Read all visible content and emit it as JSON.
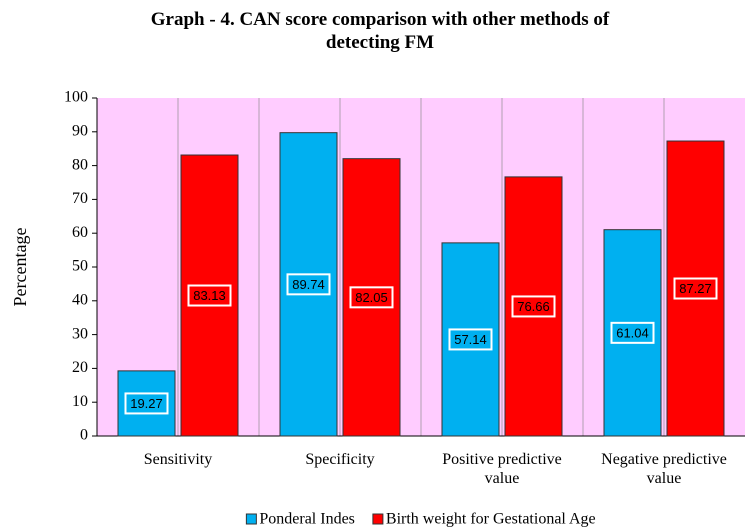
{
  "chart_data": {
    "type": "bar",
    "title": "Graph - 4. CAN score comparison with other methods of detecting FM",
    "y_label": "Percentage",
    "categories": [
      "Sensitivity",
      "Specificity",
      "Positive predictive value",
      "Negative predictive value"
    ],
    "series": [
      {
        "name": "Ponderal Indes",
        "color": "#00b0f0",
        "values": [
          19.27,
          89.74,
          57.14,
          61.04
        ]
      },
      {
        "name": "Birth weight for Gestational Age",
        "color": "#ff0000",
        "values": [
          83.13,
          82.05,
          76.66,
          87.27
        ]
      }
    ],
    "ylim": [
      0,
      100
    ],
    "yticks": [
      0,
      10,
      20,
      30,
      40,
      50,
      60,
      70,
      80,
      90,
      100
    ],
    "legend": "bottom"
  }
}
